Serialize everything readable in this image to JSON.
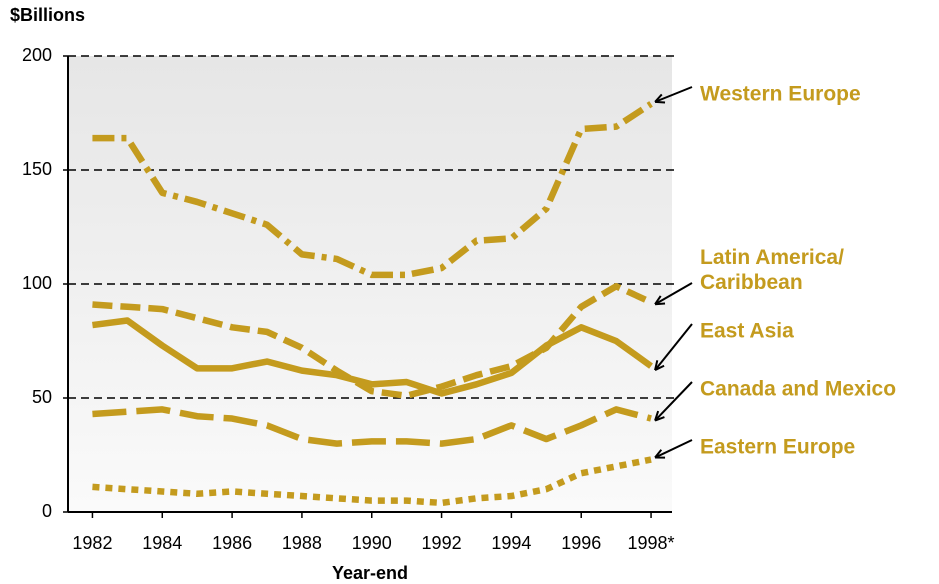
{
  "chart_data": {
    "type": "line",
    "y_axis_label": "$Billions",
    "x_axis_label": "Year-end",
    "x": [
      1982,
      1983,
      1984,
      1985,
      1986,
      1987,
      1988,
      1989,
      1990,
      1991,
      1992,
      1993,
      1994,
      1995,
      1996,
      1997,
      1998
    ],
    "xlim": [
      1981.3,
      1998.6
    ],
    "xticks": [
      1982,
      1984,
      1986,
      1988,
      1990,
      1992,
      1994,
      1996,
      {
        "value": 1998,
        "label": "1998*"
      }
    ],
    "ylim": [
      0,
      200
    ],
    "yticks": [
      0,
      50,
      100,
      150,
      200
    ],
    "grid": true,
    "series": [
      {
        "name": "Western Europe",
        "color": "#c49b1e",
        "dash": "dash-dot",
        "values": [
          164,
          164,
          140,
          136,
          131,
          126,
          113,
          111,
          104,
          104,
          107,
          119,
          120,
          133,
          168,
          169,
          179
        ]
      },
      {
        "name": "Latin America/Caribbean",
        "color": "#c49b1e",
        "dash": "dashed",
        "values": [
          91,
          90,
          89,
          85,
          81,
          79,
          72,
          62,
          53,
          51,
          55,
          60,
          64,
          72,
          90,
          99,
          92
        ]
      },
      {
        "name": "East Asia",
        "color": "#c49b1e",
        "dash": "solid",
        "values": [
          82,
          84,
          73,
          63,
          63,
          66,
          62,
          60,
          56,
          57,
          52,
          56,
          61,
          73,
          81,
          75,
          64
        ]
      },
      {
        "name": "Canada and Mexico",
        "color": "#c49b1e",
        "dash": "long-dash",
        "values": [
          43,
          44,
          45,
          42,
          41,
          38,
          32,
          30,
          31,
          31,
          30,
          32,
          38,
          32,
          38,
          45,
          41
        ]
      },
      {
        "name": "Eastern Europe",
        "color": "#c49b1e",
        "dash": "dotted",
        "values": [
          11,
          10,
          9,
          8,
          9,
          8,
          7,
          6,
          5,
          5,
          4,
          6,
          7,
          10,
          17,
          20,
          23
        ]
      }
    ]
  }
}
